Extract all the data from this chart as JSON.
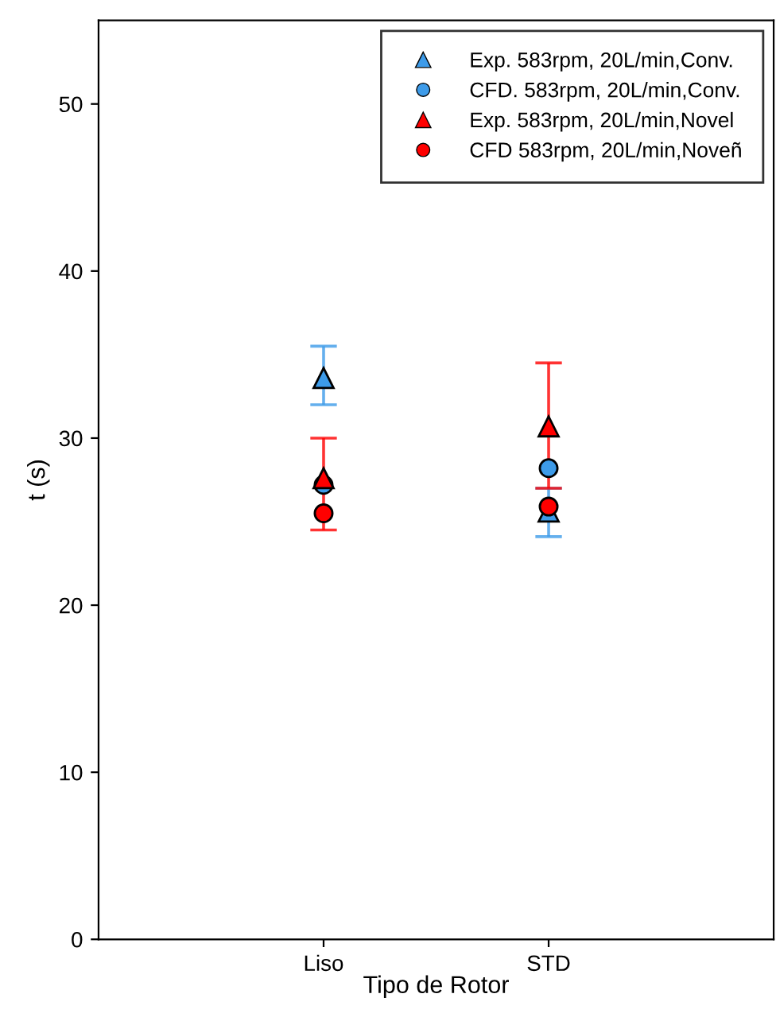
{
  "chart_data": {
    "type": "scatter",
    "xlabel": "Tipo de Rotor",
    "ylabel": "t (s)",
    "categories": [
      "Liso",
      "STD"
    ],
    "ylim": [
      0,
      55
    ],
    "yticks": [
      0,
      10,
      20,
      30,
      40,
      50
    ],
    "grid": false,
    "legend": "top right",
    "series": [
      {
        "name": "Exp. 583rpm, 20L/min,Conv.",
        "color": "#3d9be9",
        "marker": "triangle",
        "values": [
          33.6,
          25.6
        ],
        "errors": [
          [
            32.0,
            35.5
          ],
          [
            24.1,
            27.0
          ]
        ]
      },
      {
        "name": "CFD. 583rpm, 20L/min,Conv.",
        "color": "#3d9be9",
        "marker": "circle",
        "values": [
          27.2,
          28.2
        ]
      },
      {
        "name": "Exp. 583rpm, 20L/min,Novel",
        "color": "#ff0000",
        "marker": "triangle",
        "values": [
          27.6,
          30.7
        ],
        "errors": [
          [
            24.5,
            30.0
          ],
          [
            27.0,
            34.5
          ]
        ]
      },
      {
        "name": "CFD 583rpm, 20L/min,Noveñ",
        "color": "#ff0000",
        "marker": "circle",
        "values": [
          25.5,
          25.9
        ]
      }
    ]
  }
}
